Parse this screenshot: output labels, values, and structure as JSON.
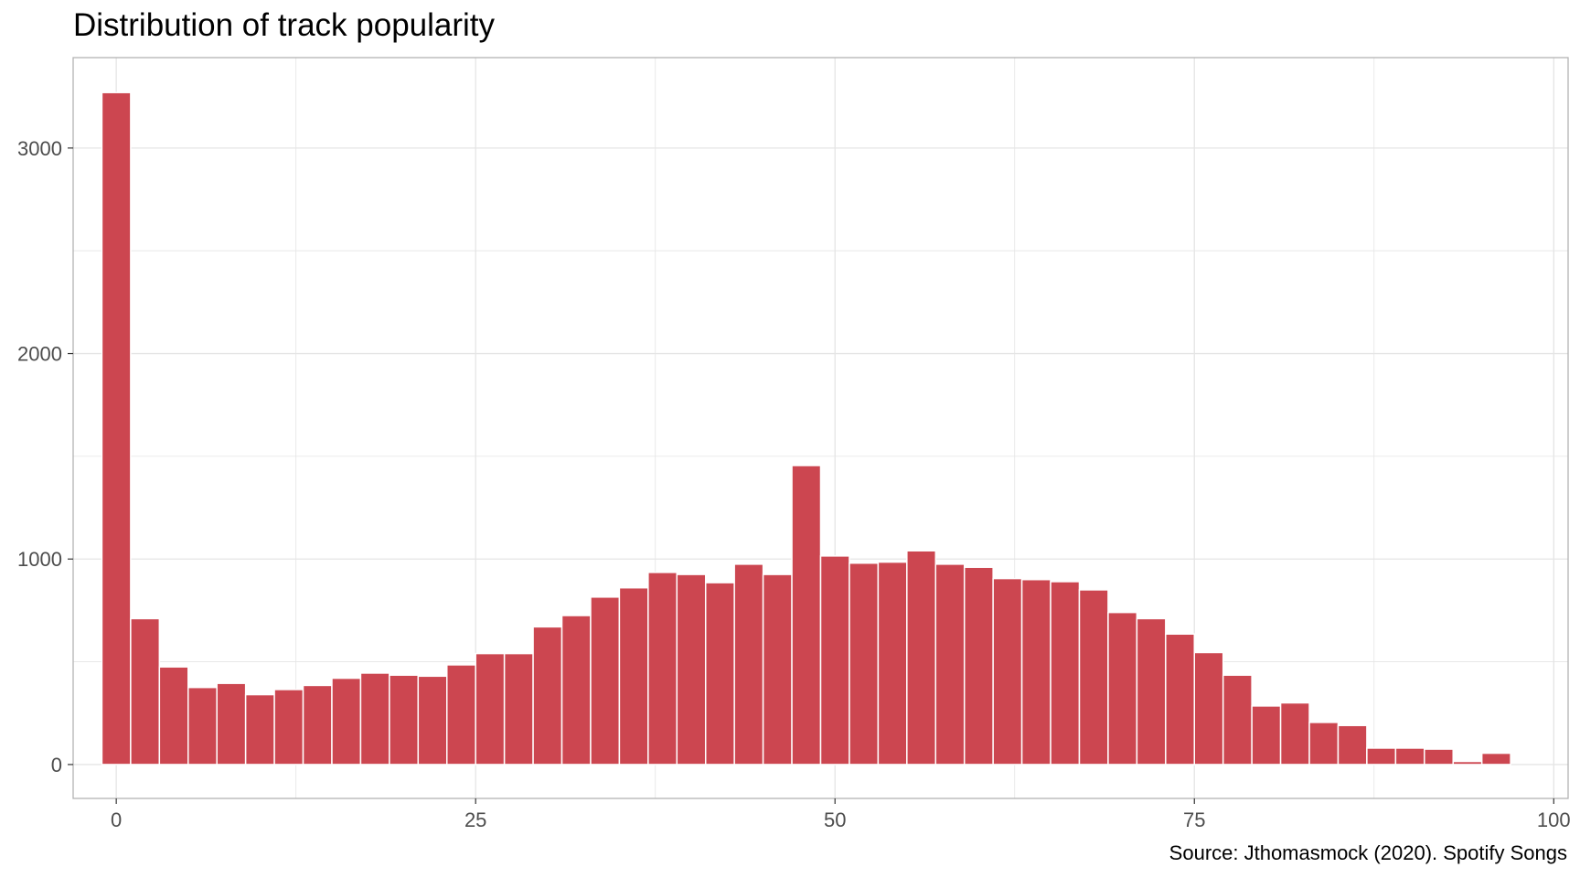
{
  "chart_data": {
    "type": "bar",
    "title": "Distribution of track popularity",
    "caption": "Source: Jthomasmock (2020). Spotify Songs",
    "xlabel": "",
    "ylabel": "",
    "bin_width": 2,
    "bins_start": [
      -1,
      1,
      3,
      5,
      7,
      9,
      11,
      13,
      15,
      17,
      19,
      21,
      23,
      25,
      27,
      29,
      31,
      33,
      35,
      37,
      39,
      41,
      43,
      45,
      47,
      49,
      51,
      53,
      55,
      57,
      59,
      61,
      63,
      65,
      67,
      69,
      71,
      73,
      75,
      77,
      79,
      81,
      83,
      85,
      87,
      89,
      91,
      93,
      95,
      97,
      99
    ],
    "values": [
      3270,
      710,
      475,
      375,
      395,
      340,
      365,
      385,
      420,
      445,
      435,
      430,
      485,
      540,
      540,
      670,
      725,
      815,
      860,
      935,
      925,
      885,
      975,
      925,
      1455,
      1015,
      980,
      985,
      1040,
      975,
      960,
      905,
      900,
      890,
      850,
      740,
      710,
      635,
      545,
      435,
      285,
      300,
      205,
      190,
      80,
      80,
      75,
      15,
      55,
      0
    ],
    "xlim": [
      -3,
      101
    ],
    "ylim": [
      -165,
      3440
    ],
    "x_ticks": [
      0,
      25,
      50,
      75,
      100
    ],
    "x_tick_labels": [
      "0",
      "25",
      "50",
      "75",
      "100"
    ],
    "y_ticks": [
      0,
      1000,
      2000,
      3000
    ],
    "y_tick_labels": [
      "0",
      "1000",
      "2000",
      "3000"
    ],
    "grid": true,
    "bar_color": "#cc4650",
    "bar_edge_color": "#ffffff",
    "grid_color": "#e5e5e5",
    "panel_border_color": "#b3b3b3"
  }
}
